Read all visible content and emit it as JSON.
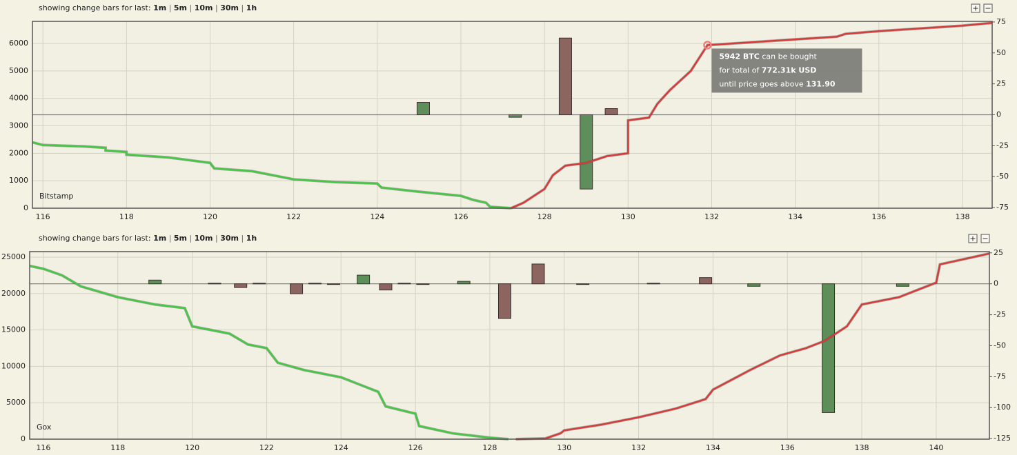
{
  "chart_data": [
    {
      "type": "depth",
      "label": "Bitstamp",
      "toolbar": {
        "text": "showing change bars for last:",
        "options": [
          "1m",
          "5m",
          "10m",
          "30m",
          "1h"
        ],
        "separator": "|",
        "buttons": [
          "+",
          "−"
        ]
      },
      "xlim": [
        115.75,
        138.71
      ],
      "xticks": [
        116,
        118,
        120,
        122,
        124,
        126,
        128,
        130,
        132,
        134,
        136,
        138
      ],
      "ylim": [
        0,
        6806
      ],
      "yticks": [
        0,
        1000,
        2000,
        3000,
        4000,
        5000,
        6000
      ],
      "y2lim": [
        -75.5,
        75.5
      ],
      "y2ticks": [
        75,
        50,
        25,
        0,
        -25,
        -50,
        -75
      ],
      "grid": true,
      "lines": [
        {
          "color": "#3fca3f",
          "x": [
            115.75,
            116,
            117,
            117.5,
            117.5,
            118,
            118,
            119,
            119.5,
            120,
            120.1,
            121,
            121.5,
            122,
            123,
            124,
            124.1,
            125,
            126,
            126.3,
            126.6,
            126.7,
            127.2
          ],
          "values": [
            2400,
            2300,
            2250,
            2200,
            2100,
            2050,
            1950,
            1850,
            1750,
            1650,
            1450,
            1350,
            1200,
            1050,
            950,
            900,
            750,
            600,
            450,
            300,
            200,
            50,
            0
          ]
        },
        {
          "color": "#d83a3a",
          "x": [
            127.2,
            127.5,
            128,
            128.2,
            128.5,
            129,
            129.5,
            130,
            130,
            130.5,
            130.7,
            131,
            131.5,
            131.9,
            132,
            133,
            134,
            135,
            135.2,
            136,
            137,
            138,
            138.71
          ],
          "values": [
            0,
            200,
            700,
            1200,
            1550,
            1650,
            1900,
            2000,
            3200,
            3300,
            3800,
            4300,
            5000,
            5942,
            5950,
            6050,
            6150,
            6250,
            6350,
            6450,
            6550,
            6650,
            6750
          ]
        }
      ],
      "bars": {
        "axis": "y2",
        "x": [
          125.1,
          127.3,
          128.5,
          129.0,
          129.6
        ],
        "values": [
          10,
          -2,
          62,
          -60,
          5
        ],
        "colors": [
          "#5e8f5a",
          "#5e8f5a",
          "#8c6560",
          "#5e8f5a",
          "#8c6560"
        ]
      },
      "annotation": {
        "x": 131.9,
        "y": 5942,
        "lines": [
          [
            {
              "text": "5942 BTC",
              "bold": true
            },
            {
              "text": " can be bought"
            }
          ],
          [
            {
              "text": "for total of "
            },
            {
              "text": "772.31k USD",
              "bold": true
            }
          ],
          [
            {
              "text": "until price goes above "
            },
            {
              "text": "131.90",
              "bold": true
            }
          ]
        ]
      }
    },
    {
      "type": "depth",
      "label": "Gox",
      "toolbar": {
        "text": "showing change bars for last:",
        "options": [
          "1m",
          "5m",
          "10m",
          "30m",
          "1h"
        ],
        "separator": "|",
        "buttons": [
          "+",
          "−"
        ]
      },
      "xlim": [
        115.63,
        141.43
      ],
      "xticks": [
        116,
        118,
        120,
        122,
        124,
        126,
        128,
        130,
        132,
        134,
        136,
        138,
        140
      ],
      "ylim": [
        0,
        25760
      ],
      "yticks": [
        0,
        5000,
        10000,
        15000,
        20000,
        25000
      ],
      "y2lim": [
        -125.5,
        26
      ],
      "y2ticks": [
        25,
        0,
        -25,
        -50,
        -75,
        -100,
        -125
      ],
      "grid": true,
      "lines": [
        {
          "color": "#3fca3f",
          "x": [
            115.63,
            116,
            116.5,
            117,
            118,
            119,
            119.8,
            120,
            121,
            121.5,
            122,
            122.3,
            123,
            124,
            124.5,
            125,
            125.2,
            126,
            126.1,
            127,
            128,
            128.5
          ],
          "values": [
            23800,
            23400,
            22500,
            21000,
            19500,
            18500,
            18000,
            15500,
            14500,
            13000,
            12500,
            10500,
            9500,
            8500,
            7500,
            6500,
            4500,
            3500,
            1800,
            800,
            200,
            0
          ]
        },
        {
          "color": "#d83a3a",
          "x": [
            128.7,
            129.5,
            129.9,
            130,
            131,
            132,
            133,
            133.8,
            134,
            135,
            135.8,
            136.5,
            137,
            137.6,
            138,
            139,
            139.5,
            140,
            140.1,
            141.43
          ],
          "values": [
            0,
            100,
            800,
            1200,
            2000,
            3000,
            4200,
            5500,
            6800,
            9500,
            11500,
            12500,
            13500,
            15500,
            18500,
            19500,
            20500,
            21500,
            24000,
            25500
          ]
        }
      ],
      "bars": {
        "axis": "y2",
        "x": [
          119.0,
          120.6,
          121.3,
          121.8,
          122.8,
          123.3,
          123.8,
          124.6,
          125.2,
          125.7,
          126.2,
          127.3,
          128.4,
          129.3,
          130.5,
          132.4,
          133.8,
          135.1,
          137.1,
          139.1
        ],
        "values": [
          3,
          0.5,
          -3,
          0.5,
          -8,
          0.5,
          -0.5,
          7,
          -5,
          0.5,
          -0.5,
          2,
          -28,
          16,
          -0.5,
          0.5,
          5,
          -2,
          -104,
          -2
        ],
        "colors": [
          "#5e8f5a",
          "#5e8f5a",
          "#8c6560",
          "#5e8f5a",
          "#8c6560",
          "#5e8f5a",
          "#8c6560",
          "#5e8f5a",
          "#8c6560",
          "#5e8f5a",
          "#8c6560",
          "#5e8f5a",
          "#8c6560",
          "#8c6560",
          "#8c6560",
          "#8c6560",
          "#8c6560",
          "#5e8f5a",
          "#5e8f5a",
          "#5e8f5a"
        ]
      }
    }
  ]
}
